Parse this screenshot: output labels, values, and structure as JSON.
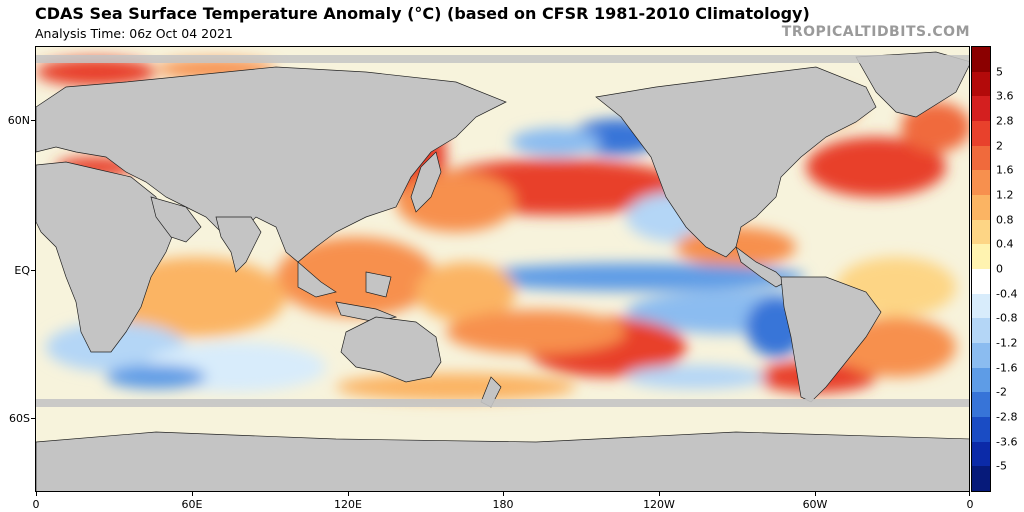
{
  "header": {
    "title": "CDAS Sea Surface Temperature Anomaly (°C) (based on CFSR 1981-2010 Climatology)",
    "subtitle": "Analysis Time: 06z Oct 04 2021",
    "brand": "TROPICALTIDBITS.COM"
  },
  "map": {
    "lat_labels": [
      "60N",
      "EQ",
      "60S"
    ],
    "lon_labels": [
      "0",
      "60E",
      "120E",
      "180",
      "120W",
      "60W",
      "0"
    ]
  },
  "colorbar": {
    "labels": [
      "5",
      "3.6",
      "2.8",
      "2",
      "1.6",
      "1.2",
      "0.8",
      "0.4",
      "0",
      "-0.4",
      "-0.8",
      "-1.2",
      "-1.6",
      "-2",
      "-2.8",
      "-3.6",
      "-5"
    ],
    "colors": [
      "#8b0000",
      "#b30a0a",
      "#d41f1f",
      "#e8412c",
      "#f06a3c",
      "#f7904e",
      "#fbb463",
      "#fdd585",
      "#fff3b0",
      "#ffffff",
      "#d8ecfb",
      "#b4d6f6",
      "#8bbcf0",
      "#5e9ce6",
      "#3774d8",
      "#1a4cc4",
      "#0b2aa8",
      "#061a7a"
    ]
  },
  "palette": {
    "land": "#c4c4c4",
    "ice": "#e8e8e8",
    "ocean_base": "#f7f3dc"
  }
}
